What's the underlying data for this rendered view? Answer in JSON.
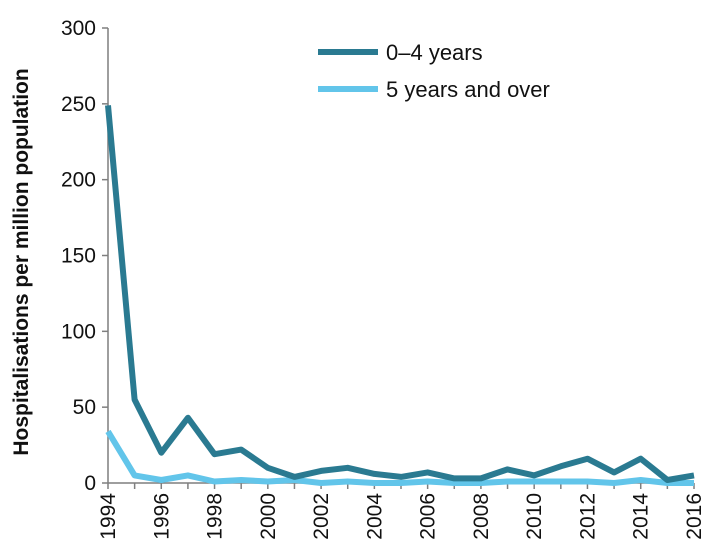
{
  "chart_data": {
    "type": "line",
    "title": "",
    "xlabel": "",
    "ylabel": "Hospitalisations per million population",
    "x": [
      1994,
      1995,
      1996,
      1997,
      1998,
      1999,
      2000,
      2001,
      2002,
      2003,
      2004,
      2005,
      2006,
      2007,
      2008,
      2009,
      2010,
      2011,
      2012,
      2013,
      2014,
      2015,
      2016
    ],
    "xticks": [
      "1994",
      "1996",
      "1998",
      "2000",
      "2002",
      "2004",
      "2006",
      "2008",
      "2010",
      "2012",
      "2014",
      "2016"
    ],
    "yticks": [
      "0",
      "50",
      "100",
      "150",
      "200",
      "250",
      "300"
    ],
    "ylim": [
      0,
      300
    ],
    "grid": false,
    "legend_position": "top-right",
    "series": [
      {
        "name": "0‒4 years",
        "color": "#2a7a91",
        "values": [
          249,
          55,
          20,
          43,
          19,
          22,
          10,
          4,
          8,
          10,
          6,
          4,
          7,
          3,
          3,
          9,
          5,
          11,
          16,
          7,
          16,
          2,
          5
        ]
      },
      {
        "name": "5 years and over",
        "color": "#62c5ea",
        "values": [
          34,
          5,
          2,
          5,
          1,
          2,
          1,
          2,
          0,
          1,
          0,
          0,
          1,
          0,
          0,
          1,
          1,
          1,
          1,
          0,
          2,
          0,
          0
        ]
      }
    ]
  }
}
